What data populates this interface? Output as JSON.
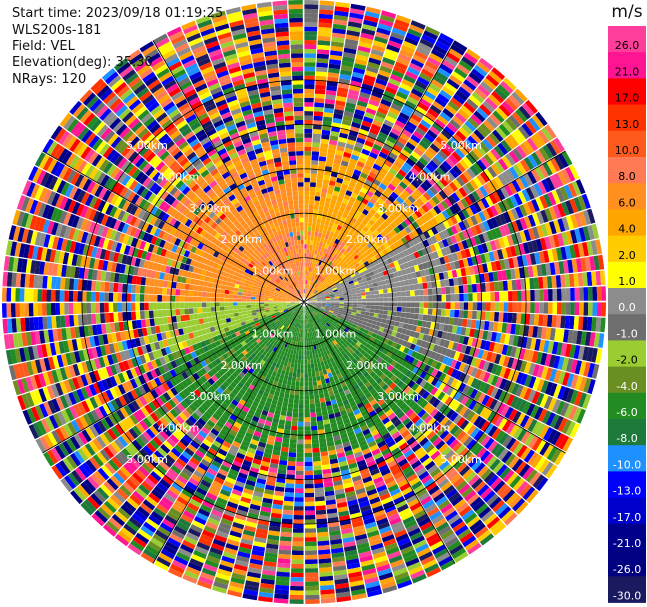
{
  "header": {
    "start_time": "Start time: 2023/09/18 01:19:25",
    "instrument": "WLS200s-181",
    "field": "Field: VEL",
    "elevation": "Elevation(deg): 35.30",
    "nrays": "NRays: 120"
  },
  "chart_data": {
    "type": "heatmap",
    "projection": "polar-ppi",
    "title": "",
    "field": "VEL",
    "units": "m/s",
    "range_ring_labels": [
      "1.00km",
      "2.00km",
      "3.00km",
      "4.00km",
      "5.00km"
    ],
    "range_rings_km": [
      1,
      2,
      3,
      4,
      5
    ],
    "max_range_km": 6.8,
    "nrays": 120,
    "grid": true,
    "colorbar": {
      "label": "m/s",
      "ticks": [
        "26.0",
        "21.0",
        "17.0",
        "13.0",
        "10.0",
        "8.0",
        "6.0",
        "4.0",
        "2.0",
        "1.0",
        "0.0",
        "-1.0",
        "-2.0",
        "-4.0",
        "-6.0",
        "-8.0",
        "-10.0",
        "-13.0",
        "-17.0",
        "-21.0",
        "-26.0",
        "-30.0"
      ],
      "colors": [
        "#ff3d9a",
        "#ff1493",
        "#ff0000",
        "#ff3300",
        "#ff5a1e",
        "#ff7a55",
        "#ff8f1f",
        "#ffa500",
        "#ffcc00",
        "#ffff00",
        "#8c8c8c",
        "#6e6e6e",
        "#9acd32",
        "#6b8e23",
        "#228b22",
        "#1e7a3a",
        "#1e90ff",
        "#0000ff",
        "#0000cd",
        "#00008b",
        "#000080",
        "#1a1a60"
      ]
    },
    "sectors": [
      {
        "from_deg": 270,
        "to_deg": 360,
        "dominant": "6.0"
      },
      {
        "from_deg": 0,
        "to_deg": 60,
        "dominant": "4.0"
      },
      {
        "from_deg": 60,
        "to_deg": 90,
        "dominant": "0.0"
      },
      {
        "from_deg": 90,
        "to_deg": 115,
        "dominant": "-1.0"
      },
      {
        "from_deg": 115,
        "to_deg": 250,
        "dominant": "-6.0"
      },
      {
        "from_deg": 250,
        "to_deg": 270,
        "dominant": "-2.0"
      }
    ]
  }
}
